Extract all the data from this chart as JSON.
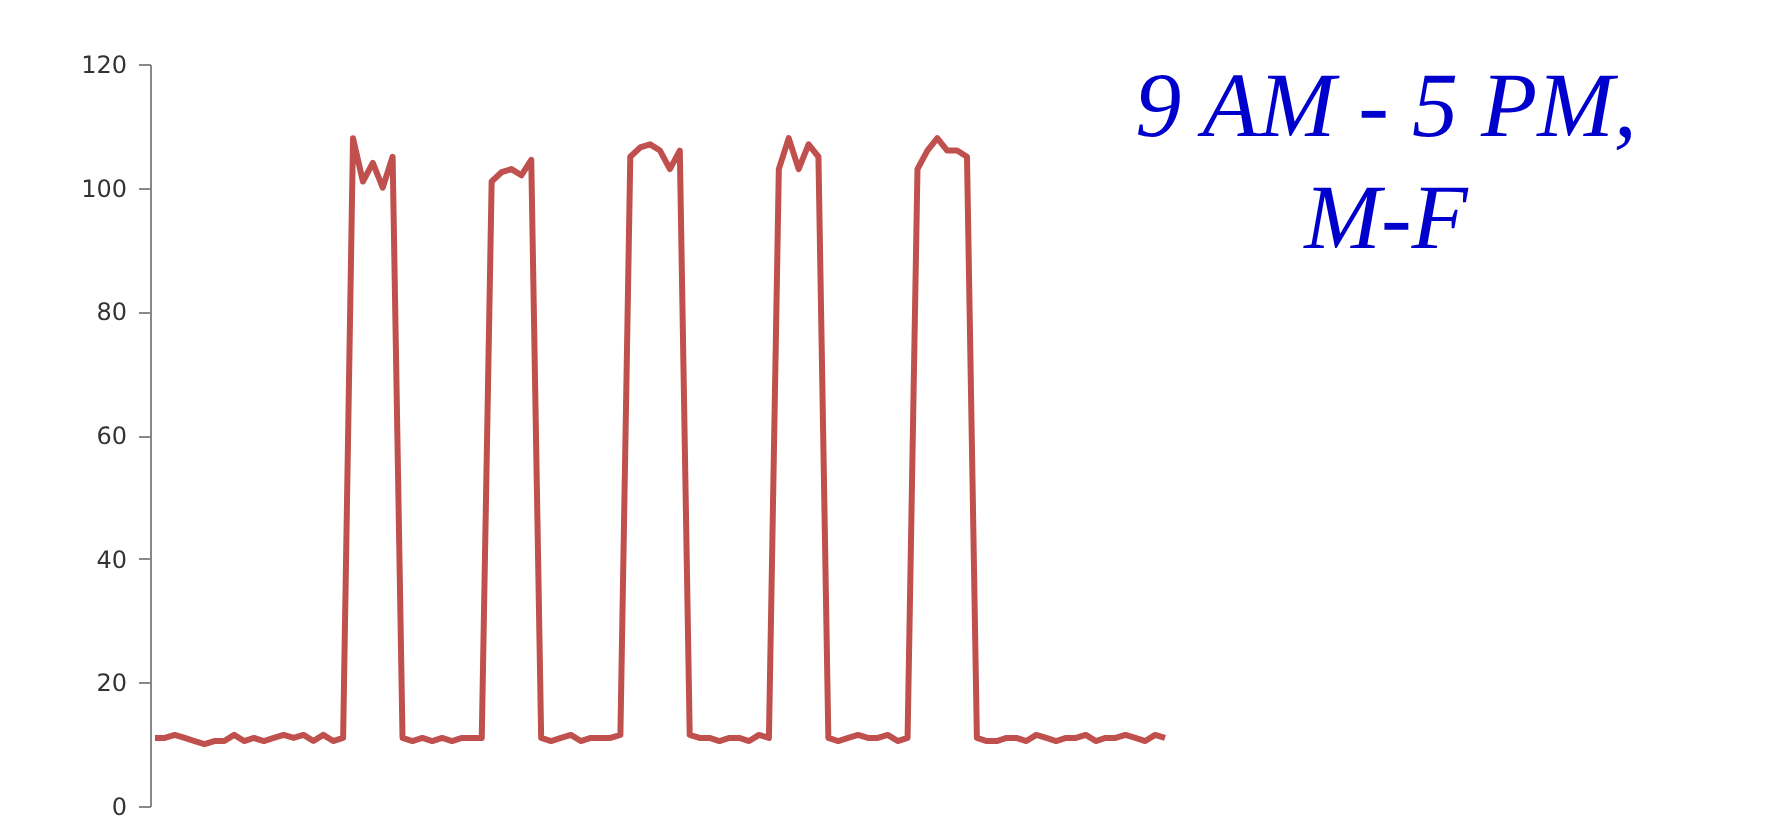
{
  "chart_data": {
    "type": "line",
    "categories": [
      null,
      null,
      null,
      null,
      null,
      null,
      null,
      null,
      null,
      null,
      null,
      null,
      null,
      null,
      null,
      null,
      null,
      null,
      null,
      null,
      null,
      null,
      null,
      null,
      null,
      null,
      null,
      null,
      null,
      null,
      null,
      null,
      null,
      null,
      null,
      null,
      null,
      null,
      null,
      null,
      null,
      null,
      null,
      null,
      null,
      null,
      null,
      null,
      null,
      null,
      null,
      null,
      null,
      null,
      null,
      null,
      null,
      null,
      null,
      null,
      null,
      null,
      null,
      null,
      null,
      null,
      null,
      null,
      null,
      null,
      null,
      null,
      null,
      null,
      null,
      null,
      null,
      null,
      null,
      null,
      null,
      null,
      null,
      null,
      null,
      null,
      null,
      null,
      null,
      null,
      null,
      null,
      null,
      null,
      null,
      null,
      null,
      null,
      null,
      null,
      null,
      null,
      null
    ],
    "series": [
      {
        "color": "#c0504d",
        "values": [
          11,
          11,
          11.5,
          11,
          10.5,
          10,
          10.5,
          10.5,
          11.5,
          10.5,
          11,
          10.5,
          11,
          11.5,
          11,
          11.5,
          10.5,
          11.5,
          10.5,
          11,
          108,
          101,
          104,
          100,
          105,
          11,
          10.5,
          11,
          10.5,
          11,
          10.5,
          11,
          11,
          11,
          101,
          102.5,
          103,
          102,
          104.5,
          11,
          10.5,
          11,
          11.5,
          10.5,
          11,
          11,
          11,
          11.5,
          105,
          106.5,
          107,
          106,
          103,
          106,
          11.5,
          11,
          11,
          10.5,
          11,
          11,
          10.5,
          11.5,
          11,
          103,
          108,
          103,
          107,
          105,
          11,
          10.5,
          11,
          11.5,
          11,
          11,
          11.5,
          10.5,
          11,
          103,
          106,
          108,
          106,
          106,
          105,
          11,
          10.5,
          10.5,
          11,
          11,
          10.5,
          11.5,
          11,
          10.5,
          11,
          11,
          11.5,
          10.5,
          11,
          11,
          11.5,
          11,
          10.5,
          11.5,
          11
        ]
      }
    ],
    "ylim": [
      0,
      120
    ],
    "yticks": [
      0,
      20,
      40,
      60,
      80,
      100,
      120
    ],
    "tick_labels": "y",
    "grid": false,
    "legend": false,
    "marker": "none",
    "line_style": "solid",
    "annotations": [
      "9 AM - 5 PM,\nM-F"
    ]
  }
}
